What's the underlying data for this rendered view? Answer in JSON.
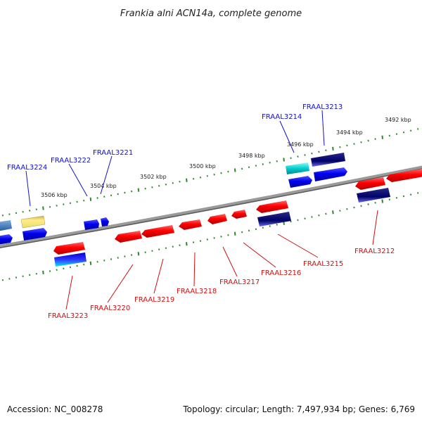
{
  "title": "Frankia alni ACN14a, complete genome",
  "footer": {
    "accession": "Accession: NC_008278",
    "summary": "Topology: circular; Length: 7,497,934 bp; Genes: 6,769"
  },
  "colors": {
    "backbone": "#808080",
    "tick": "#2a8a2a",
    "label_forward": "#1111cc",
    "label_reverse": "#cc1111"
  },
  "scale": {
    "ticks": [
      "3492 kbp",
      "3494 kbp",
      "3496 kbp",
      "3498 kbp",
      "3500 kbp",
      "3502 kbp",
      "3504 kbp",
      "3506 kbp"
    ]
  },
  "genes": {
    "forward": [
      "FRAAL3213",
      "FRAAL3214",
      "FRAAL3221",
      "FRAAL3222",
      "FRAAL3224"
    ],
    "reverse": [
      "FRAAL3212",
      "FRAAL3215",
      "FRAAL3216",
      "FRAAL3217",
      "FRAAL3218",
      "FRAAL3219",
      "FRAAL3220",
      "FRAAL3223"
    ]
  }
}
